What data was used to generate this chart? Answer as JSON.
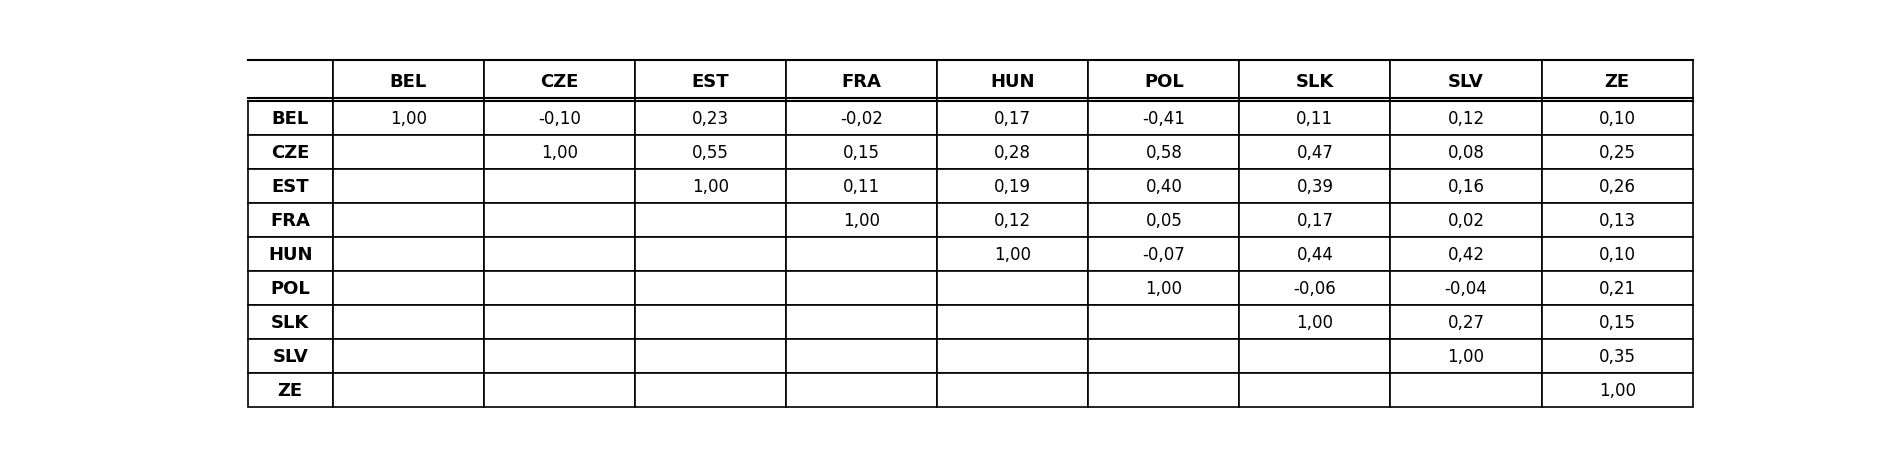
{
  "col_headers": [
    "BEL",
    "CZE",
    "EST",
    "FRA",
    "HUN",
    "POL",
    "SLK",
    "SLV",
    "ZE"
  ],
  "row_headers": [
    "BEL",
    "CZE",
    "EST",
    "FRA",
    "HUN",
    "POL",
    "SLK",
    "SLV",
    "ZE"
  ],
  "cells": [
    [
      "1,00",
      "-0,10",
      "0,23",
      "-0,02",
      "0,17",
      "-0,41",
      "0,11",
      "0,12",
      "0,10"
    ],
    [
      "",
      "1,00",
      "0,55",
      "0,15",
      "0,28",
      "0,58",
      "0,47",
      "0,08",
      "0,25"
    ],
    [
      "",
      "",
      "1,00",
      "0,11",
      "0,19",
      "0,40",
      "0,39",
      "0,16",
      "0,26"
    ],
    [
      "",
      "",
      "",
      "1,00",
      "0,12",
      "0,05",
      "0,17",
      "0,02",
      "0,13"
    ],
    [
      "",
      "",
      "",
      "",
      "1,00",
      "-0,07",
      "0,44",
      "0,42",
      "0,10"
    ],
    [
      "",
      "",
      "",
      "",
      "",
      "1,00",
      "-0,06",
      "-0,04",
      "0,21"
    ],
    [
      "",
      "",
      "",
      "",
      "",
      "",
      "1,00",
      "0,27",
      "0,15"
    ],
    [
      "",
      "",
      "",
      "",
      "",
      "",
      "",
      "1,00",
      "0,35"
    ],
    [
      "",
      "",
      "",
      "",
      "",
      "",
      "",
      "",
      "1,00"
    ]
  ],
  "bg_color": "#ffffff",
  "border_color": "#000000",
  "text_color": "#000000",
  "data_font_size": 12,
  "header_font_size": 13,
  "fig_width": 18.93,
  "fig_height": 4.64,
  "dpi": 100
}
